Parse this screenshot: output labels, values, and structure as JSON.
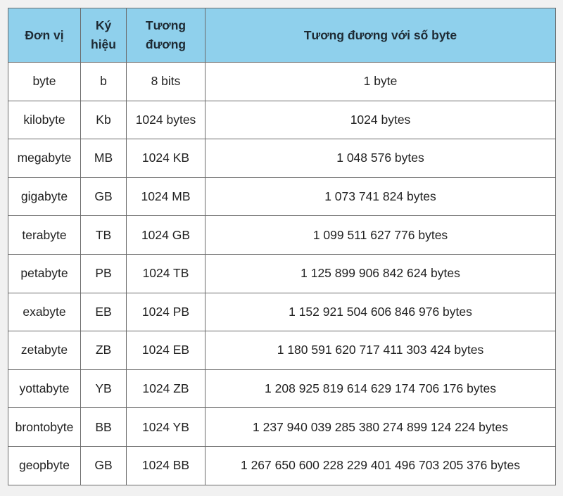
{
  "table": {
    "headers": {
      "unit": "Đơn vị",
      "symbol_line1": "Ký",
      "symbol_line2": "hiệu",
      "equivalent_line1": "Tương",
      "equivalent_line2": "đương",
      "bytes": "Tương đương với số byte"
    },
    "rows": [
      {
        "unit": "byte",
        "symbol": "b",
        "equivalent": "8 bits",
        "bytes": "1 byte"
      },
      {
        "unit": "kilobyte",
        "symbol": "Kb",
        "equivalent": "1024 bytes",
        "bytes": "1024 bytes"
      },
      {
        "unit": "megabyte",
        "symbol": "MB",
        "equivalent": "1024 KB",
        "bytes": "1 048 576 bytes"
      },
      {
        "unit": "gigabyte",
        "symbol": "GB",
        "equivalent": "1024 MB",
        "bytes": "1 073 741 824 bytes"
      },
      {
        "unit": "terabyte",
        "symbol": "TB",
        "equivalent": "1024 GB",
        "bytes": "1 099 511 627 776 bytes"
      },
      {
        "unit": "petabyte",
        "symbol": "PB",
        "equivalent": "1024 TB",
        "bytes": "1 125 899 906 842 624 bytes"
      },
      {
        "unit": "exabyte",
        "symbol": "EB",
        "equivalent": "1024 PB",
        "bytes": "1 152 921 504 606 846 976 bytes"
      },
      {
        "unit": "zetabyte",
        "symbol": "ZB",
        "equivalent": "1024 EB",
        "bytes": "1 180 591 620 717 411 303 424 bytes"
      },
      {
        "unit": "yottabyte",
        "symbol": "YB",
        "equivalent": "1024 ZB",
        "bytes": "1 208 925 819 614 629 174 706 176 bytes"
      },
      {
        "unit": "brontobyte",
        "symbol": "BB",
        "equivalent": "1024 YB",
        "bytes": "1 237 940 039 285 380 274 899 124 224 bytes"
      },
      {
        "unit": "geopbyte",
        "symbol": "GB",
        "equivalent": "1024 BB",
        "bytes": "1 267 650 600 228 229 401 496 703 205 376 bytes"
      }
    ]
  },
  "colors": {
    "header_bg": "#8fd0ec",
    "border": "#6b6b6b",
    "page_bg": "#f1f1f1"
  }
}
